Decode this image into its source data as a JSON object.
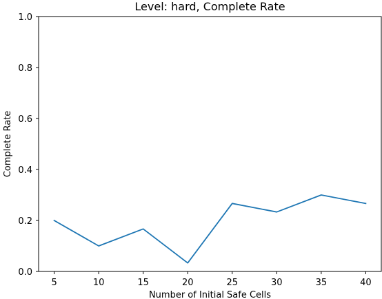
{
  "chart_data": {
    "type": "line",
    "title": "Level: hard, Complete Rate",
    "xlabel": "Number of Initial Safe Cells",
    "ylabel": "Complete Rate",
    "x": [
      5,
      10,
      15,
      20,
      25,
      30,
      35,
      40
    ],
    "series": [
      {
        "values": [
          0.2,
          0.1,
          0.1667,
          0.0333,
          0.2667,
          0.2333,
          0.3,
          0.2667
        ],
        "color": "#1f77b4"
      }
    ],
    "xticks": [
      5,
      10,
      15,
      20,
      25,
      30,
      35,
      40
    ],
    "xtick_labels": [
      "5",
      "10",
      "15",
      "20",
      "25",
      "30",
      "35",
      "40"
    ],
    "yticks": [
      0.0,
      0.2,
      0.4,
      0.6,
      0.8,
      1.0
    ],
    "ytick_labels": [
      "0.0",
      "0.2",
      "0.4",
      "0.6",
      "0.8",
      "1.0"
    ],
    "xlim": [
      3.25,
      41.75
    ],
    "ylim": [
      0.0,
      1.0
    ],
    "grid": false,
    "legend": "none"
  }
}
